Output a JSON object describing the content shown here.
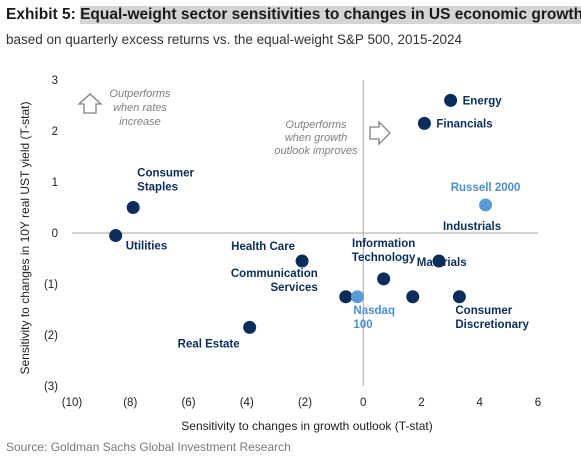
{
  "header": {
    "exhibit_prefix": "Exhibit 5: ",
    "exhibit_title": "Equal-weight sector sensitivities to changes in US economic growth ou",
    "subtitle": "based on quarterly excess returns vs. the equal-weight S&P 500, 2015-2024"
  },
  "source": "Source: Goldman Sachs Global Investment Research",
  "colors": {
    "dark_point": "#0b2d5a",
    "light_point": "#5b9bd5",
    "dark_label": "#0b2d5a",
    "light_label": "#4a8fd0",
    "axis_line": "#a6a6a6",
    "annotation": "#7f7f7f"
  },
  "chart_data": {
    "type": "scatter",
    "xlabel": "Sensitivity to changes in growth outlook (T-stat)",
    "ylabel": "Sensitivity to changes in 10Y real UST yield (T-stat)",
    "xlim": [
      -10,
      6
    ],
    "ylim": [
      -3,
      3
    ],
    "x_ticks": [
      "(10)",
      "(8)",
      "(6)",
      "(4)",
      "(2)",
      "0",
      "2",
      "4",
      "6"
    ],
    "x_tick_values": [
      -10,
      -8,
      -6,
      -4,
      -2,
      0,
      2,
      4,
      6
    ],
    "y_ticks": [
      "3",
      "2",
      "1",
      "0",
      "(1)",
      "(2)",
      "(3)"
    ],
    "y_tick_values": [
      3,
      2,
      1,
      0,
      -1,
      -2,
      -3
    ],
    "grid": false,
    "points": [
      {
        "label": "Energy",
        "x": 3.0,
        "y": 2.6,
        "style": "dark",
        "label_pos": "right"
      },
      {
        "label": "Financials",
        "x": 2.1,
        "y": 2.15,
        "style": "dark",
        "label_pos": "right"
      },
      {
        "label": "Russell 2000",
        "x": 4.2,
        "y": 0.55,
        "style": "light",
        "label_pos": "above"
      },
      {
        "label": "Consumer\nStaples",
        "x": -7.9,
        "y": 0.5,
        "style": "dark",
        "label_pos": "above-right"
      },
      {
        "label": "Utilities",
        "x": -8.5,
        "y": -0.05,
        "style": "dark",
        "label_pos": "right-below"
      },
      {
        "label": "Health Care",
        "x": -2.1,
        "y": -0.55,
        "style": "dark",
        "label_pos": "above-left"
      },
      {
        "label": "Information\nTechnology",
        "x": 0.7,
        "y": -0.9,
        "style": "dark",
        "label_pos": "above"
      },
      {
        "label": "Industrials",
        "x": 2.6,
        "y": -0.55,
        "style": "dark",
        "label_pos": "above-right"
      },
      {
        "label": "Materials",
        "x": 1.7,
        "y": -1.25,
        "style": "dark",
        "label_pos": "above-right"
      },
      {
        "label": "Consumer\nDiscretionary",
        "x": 3.3,
        "y": -1.25,
        "style": "dark",
        "label_pos": "below-right"
      },
      {
        "label": "Communication\nServices",
        "x": -0.6,
        "y": -1.25,
        "style": "dark",
        "label_pos": "left"
      },
      {
        "label": "Nasdaq\n100",
        "x": -0.2,
        "y": -1.25,
        "style": "light",
        "label_pos": "below-right"
      },
      {
        "label": "Real Estate",
        "x": -3.9,
        "y": -1.85,
        "style": "dark",
        "label_pos": "below-left"
      }
    ],
    "annotations": [
      {
        "text": "Outperforms\nwhen rates\nincrease",
        "arrow": "up"
      },
      {
        "text": "Outperforms\nwhen growth\noutlook improves",
        "arrow": "right"
      }
    ]
  }
}
